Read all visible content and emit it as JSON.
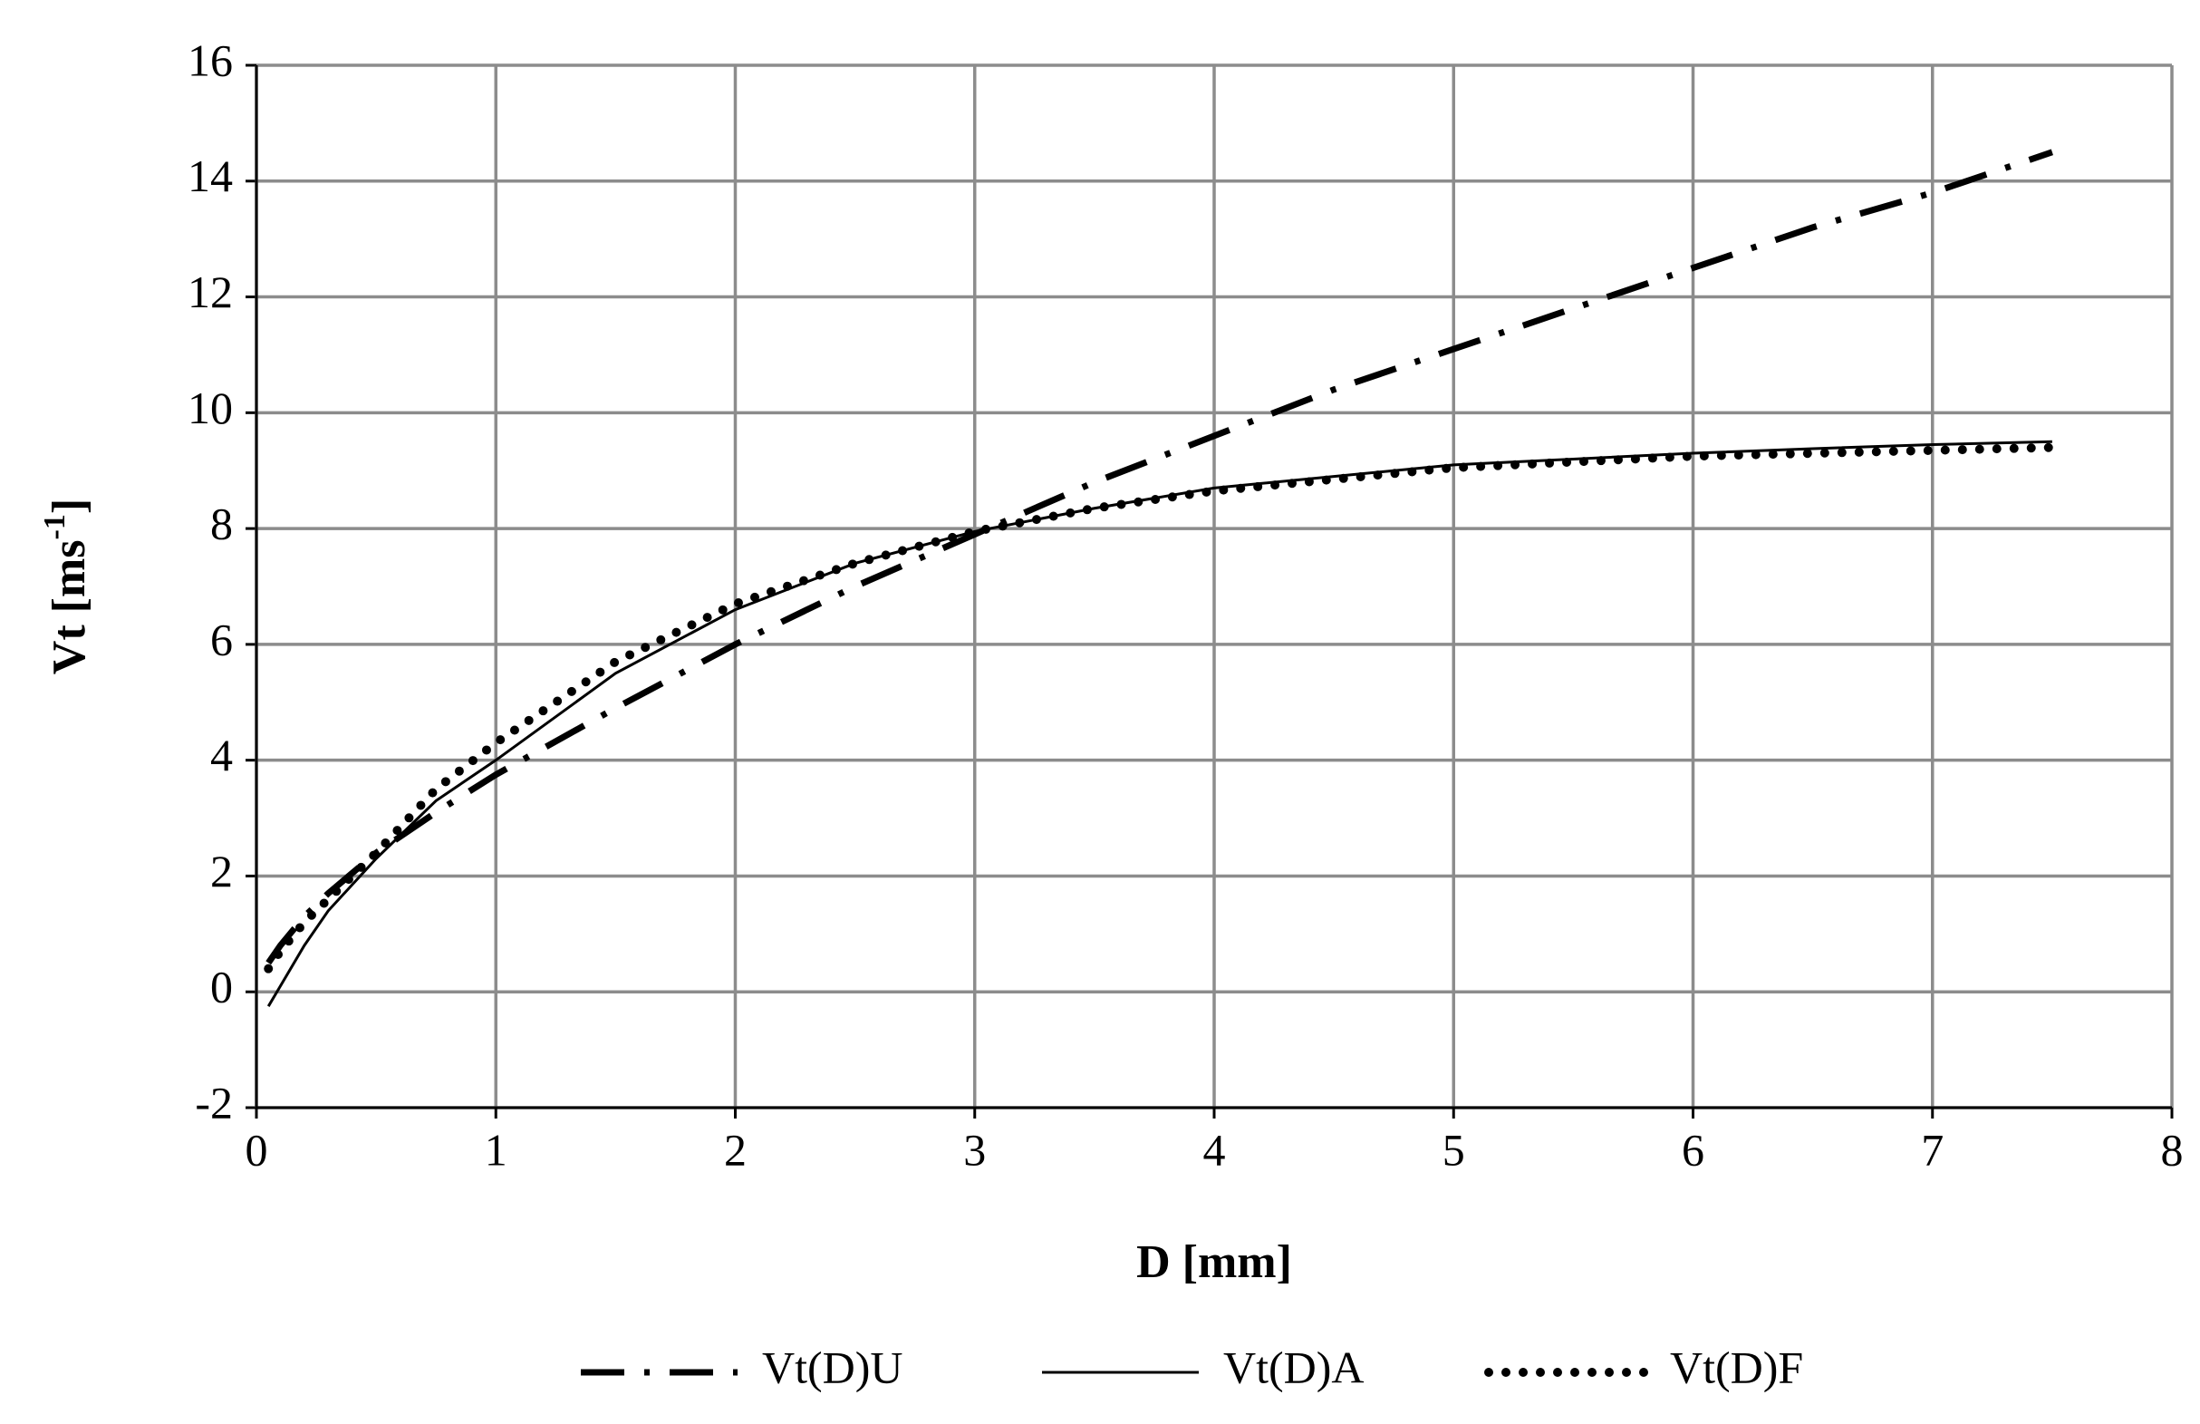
{
  "chart_data": {
    "type": "line",
    "x_label": "D [mm]",
    "y_label_parts": [
      "Vt [ms",
      "-1",
      "]"
    ],
    "x": [
      0.05,
      0.1,
      0.2,
      0.3,
      0.5,
      0.75,
      1,
      1.5,
      2,
      2.5,
      3,
      3.5,
      4,
      4.5,
      5,
      5.5,
      6,
      6.5,
      7,
      7.5
    ],
    "series": [
      {
        "name": "Vt(D)U",
        "color": "#000000",
        "style": "dashdot",
        "values": [
          0.5,
          0.8,
          1.3,
          1.7,
          2.4,
          3.1,
          3.75,
          4.9,
          6.0,
          7.0,
          7.9,
          8.8,
          9.6,
          10.4,
          11.1,
          11.8,
          12.5,
          13.2,
          13.8,
          14.5
        ]
      },
      {
        "name": "Vt(D)A",
        "color": "#000000",
        "style": "solid",
        "values": [
          -0.25,
          0.1,
          0.8,
          1.4,
          2.3,
          3.3,
          4.0,
          5.5,
          6.6,
          7.4,
          7.95,
          8.35,
          8.7,
          8.9,
          9.1,
          9.2,
          9.3,
          9.38,
          9.45,
          9.5
        ]
      },
      {
        "name": "Vt(D)F",
        "color": "#000000",
        "style": "dotted",
        "values": [
          0.4,
          0.7,
          1.2,
          1.6,
          2.4,
          3.5,
          4.3,
          5.7,
          6.7,
          7.4,
          7.95,
          8.35,
          8.65,
          8.85,
          9.05,
          9.15,
          9.25,
          9.3,
          9.35,
          9.4
        ]
      }
    ],
    "xlim": [
      0,
      8
    ],
    "xticks": [
      0,
      1,
      2,
      3,
      4,
      5,
      6,
      7,
      8
    ],
    "ylim": [
      -2,
      16
    ],
    "yticks": [
      -2,
      0,
      2,
      4,
      6,
      8,
      10,
      12,
      14,
      16
    ],
    "grid": true,
    "legend": "bottom"
  }
}
